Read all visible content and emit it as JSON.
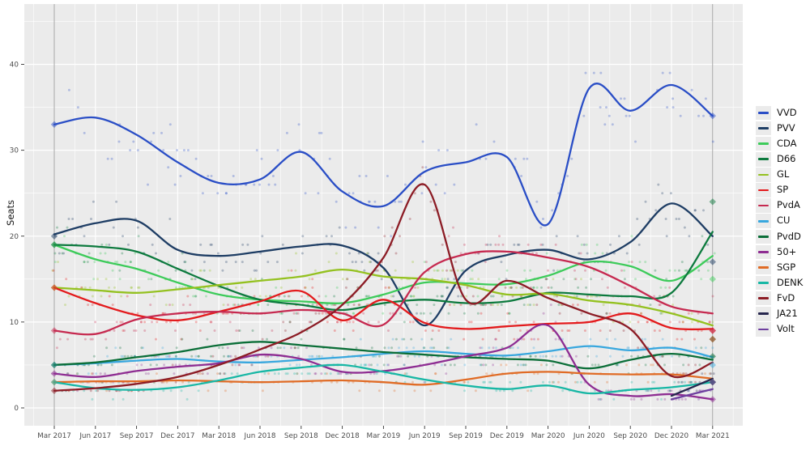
{
  "chart_data": {
    "type": "scatter+smoothed-line",
    "title": "",
    "ylabel": "Seats",
    "xlabel": "",
    "y_ticks": [
      0,
      10,
      20,
      30,
      40
    ],
    "ylim": [
      -1.5,
      47
    ],
    "x_tick_labels": [
      "Mar 2017",
      "Jun 2017",
      "Sep 2017",
      "Dec 2017",
      "Mar 2018",
      "Jun 2018",
      "Sep 2018",
      "Dec 2018",
      "Mar 2019",
      "Jun 2019",
      "Sep 2019",
      "Dec 2019",
      "Mar 2020",
      "Jun 2020",
      "Sep 2020",
      "Dec 2020",
      "Mar 2021"
    ],
    "grid": true,
    "legend_position": "right",
    "panel_bg": "#ebebeb",
    "grid_color": "#ffffff",
    "tick_label_color": "#4d4d4d",
    "axis_title_color": "#141414",
    "election_line_color": "#8f8f8f",
    "election_marker_dates": [
      "Mar 2017",
      "Mar 2021"
    ],
    "series": [
      {
        "name": "VVD",
        "color": "#2a4ec6",
        "values": [
          33.0,
          33.8,
          31.8,
          28.6,
          26.2,
          26.6,
          29.8,
          25.2,
          23.5,
          27.5,
          28.6,
          29.2,
          21.4,
          37.2,
          34.6,
          37.6,
          34.0
        ],
        "election_2017_seats": 33,
        "election_2021_seats": 34
      },
      {
        "name": "PVV",
        "color": "#1e3d64",
        "values": [
          20.2,
          21.5,
          21.8,
          18.4,
          17.7,
          18.2,
          18.8,
          18.9,
          16.3,
          9.6,
          16.0,
          17.8,
          18.4,
          17.3,
          19.3,
          23.8,
          20.0
        ],
        "election_2017_seats": 20,
        "election_2021_seats": 17
      },
      {
        "name": "CDA",
        "color": "#3dcb5a",
        "values": [
          19.0,
          17.3,
          16.2,
          14.6,
          13.2,
          12.6,
          12.4,
          12.2,
          13.2,
          14.6,
          14.5,
          14.4,
          15.4,
          17.0,
          16.5,
          14.8,
          17.7
        ],
        "election_2017_seats": 19,
        "election_2021_seats": 15
      },
      {
        "name": "D66",
        "color": "#0d7a3e",
        "values": [
          19.0,
          18.8,
          18.2,
          16.2,
          14.2,
          12.6,
          12.0,
          11.4,
          12.2,
          12.6,
          12.2,
          12.4,
          13.4,
          13.2,
          13.0,
          13.4,
          20.5
        ],
        "election_2017_seats": 19,
        "election_2021_seats": 24
      },
      {
        "name": "GL",
        "color": "#94c120",
        "values": [
          14.0,
          13.7,
          13.4,
          13.8,
          14.3,
          14.8,
          15.3,
          16.1,
          15.3,
          15.0,
          14.3,
          13.2,
          13.3,
          12.5,
          12.0,
          11.0,
          9.6
        ],
        "election_2017_seats": 14,
        "election_2021_seats": 8
      },
      {
        "name": "SP",
        "color": "#e31a1c",
        "values": [
          14.0,
          12.2,
          10.8,
          10.2,
          11.2,
          12.4,
          13.6,
          10.2,
          12.6,
          9.9,
          9.2,
          9.5,
          9.8,
          10.0,
          11.0,
          9.3,
          9.2
        ],
        "election_2017_seats": 14,
        "election_2021_seats": 9
      },
      {
        "name": "PvdA",
        "color": "#c62a50",
        "values": [
          9.0,
          8.6,
          10.3,
          11.0,
          11.2,
          11.0,
          11.4,
          11.0,
          9.7,
          15.8,
          17.9,
          18.2,
          17.5,
          16.4,
          14.2,
          11.8,
          11.0
        ],
        "election_2017_seats": 9,
        "election_2021_seats": 9
      },
      {
        "name": "CU",
        "color": "#38a7de",
        "values": [
          5.0,
          5.2,
          5.5,
          5.7,
          5.4,
          5.3,
          5.6,
          5.9,
          6.3,
          6.6,
          6.3,
          6.1,
          6.6,
          7.2,
          6.7,
          7.0,
          5.9
        ],
        "election_2017_seats": 5,
        "election_2021_seats": 5
      },
      {
        "name": "PvdD",
        "color": "#0b6e38",
        "values": [
          5.0,
          5.3,
          5.9,
          6.5,
          7.3,
          7.7,
          7.3,
          6.9,
          6.5,
          6.2,
          5.9,
          5.7,
          5.5,
          4.6,
          5.6,
          6.3,
          5.6
        ],
        "election_2017_seats": 5,
        "election_2021_seats": 6
      },
      {
        "name": "50+",
        "color": "#8e2d92",
        "values": [
          4.0,
          3.6,
          4.3,
          4.8,
          5.2,
          6.2,
          5.7,
          4.2,
          4.3,
          5.0,
          6.0,
          7.0,
          9.6,
          2.7,
          1.4,
          1.6,
          1.0
        ],
        "election_2017_seats": 4,
        "election_2021_seats": 1
      },
      {
        "name": "SGP",
        "color": "#e06b25",
        "values": [
          3.0,
          3.1,
          3.1,
          3.2,
          3.1,
          3.0,
          3.1,
          3.2,
          3.0,
          2.7,
          3.3,
          4.0,
          4.2,
          4.0,
          3.9,
          3.9,
          3.4
        ],
        "election_2017_seats": 3,
        "election_2021_seats": 3
      },
      {
        "name": "DENK",
        "color": "#18b7a5",
        "values": [
          3.0,
          2.3,
          2.1,
          2.4,
          3.2,
          4.2,
          4.7,
          5.0,
          4.2,
          3.3,
          2.6,
          2.2,
          2.6,
          1.7,
          2.1,
          2.4,
          3.0
        ],
        "election_2017_seats": 3,
        "election_2021_seats": 3
      },
      {
        "name": "FvD",
        "color": "#8c1c25",
        "values": [
          2.0,
          2.3,
          2.8,
          3.6,
          5.0,
          6.8,
          8.8,
          12.0,
          17.5,
          26.0,
          12.6,
          14.8,
          12.8,
          11.0,
          9.2,
          3.7,
          5.3
        ],
        "election_2017_seats": 2,
        "election_2021_seats": 8
      },
      {
        "name": "JA21",
        "color": "#27274e",
        "values": [
          null,
          null,
          null,
          null,
          null,
          null,
          null,
          null,
          null,
          null,
          null,
          null,
          null,
          null,
          null,
          1.4,
          3.4
        ],
        "election_2017_seats": null,
        "election_2021_seats": 3
      },
      {
        "name": "Volt",
        "color": "#6e3f9f",
        "values": [
          null,
          null,
          null,
          null,
          null,
          null,
          null,
          null,
          null,
          null,
          null,
          null,
          null,
          null,
          null,
          1.0,
          2.2
        ],
        "election_2017_seats": null,
        "election_2021_seats": 3
      }
    ]
  }
}
